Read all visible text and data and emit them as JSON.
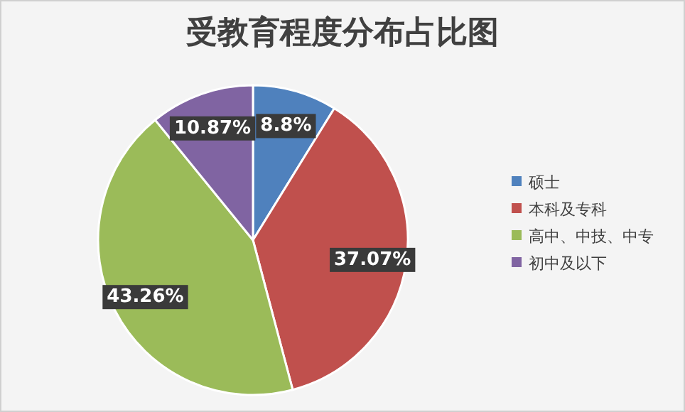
{
  "chart_data": {
    "type": "pie",
    "title": "受教育程度分布占比图",
    "categories": [
      "硕士",
      "本科及专科",
      "高中、中技、中专",
      "初中及以下"
    ],
    "values": [
      8.8,
      37.07,
      43.26,
      10.87
    ],
    "colors": [
      "#4f81bd",
      "#c0504d",
      "#9bbb59",
      "#8064a2"
    ],
    "value_labels": [
      "8.8%",
      "37.07%",
      "43.26%",
      "10.87%"
    ],
    "legend": "right"
  }
}
